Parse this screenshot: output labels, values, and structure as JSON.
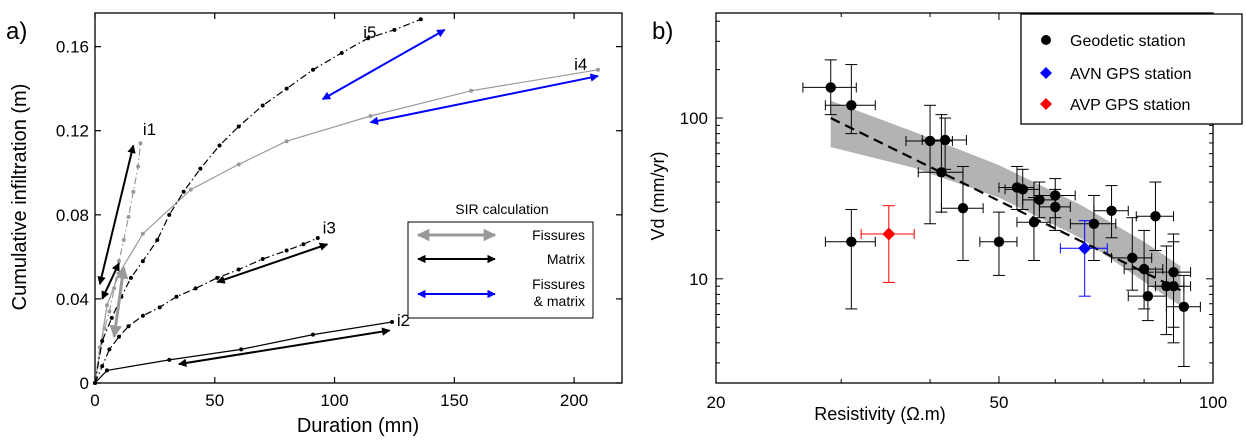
{
  "chart_data": [
    {
      "panel_label": "a)",
      "type": "line",
      "xlabel": "Duration (mn)",
      "ylabel": "Cumulative infiltration (m)",
      "xlim": [
        0,
        220
      ],
      "ylim": [
        0,
        0.176
      ],
      "xticks": [
        0,
        50,
        100,
        150,
        200
      ],
      "yticks": [
        0,
        0.04,
        0.08,
        0.12,
        0.16
      ],
      "xtick_labels": [
        "0",
        "50",
        "100",
        "150",
        "200"
      ],
      "ytick_labels": [
        "0",
        "0.04",
        "0.08",
        "0.12",
        "0.16"
      ],
      "grid": false,
      "series": [
        {
          "name": "i1",
          "color": "#999999",
          "style": "dashdot",
          "x": [
            0,
            2,
            4,
            6,
            8,
            10,
            12,
            14,
            16,
            18,
            19
          ],
          "y": [
            0,
            0.017,
            0.026,
            0.034,
            0.045,
            0.058,
            0.068,
            0.079,
            0.091,
            0.103,
            0.114
          ]
        },
        {
          "name": "i2",
          "color": "#000000",
          "style": "solid",
          "x": [
            0,
            5,
            31,
            61,
            91,
            124
          ],
          "y": [
            0,
            0.006,
            0.011,
            0.016,
            0.023,
            0.029
          ]
        },
        {
          "name": "i3",
          "color": "#000000",
          "style": "dashdot",
          "x": [
            0,
            3,
            6,
            10,
            14,
            20,
            27,
            34,
            42,
            51,
            60,
            70,
            80,
            87,
            93
          ],
          "y": [
            0,
            0.008,
            0.016,
            0.022,
            0.027,
            0.032,
            0.036,
            0.041,
            0.045,
            0.05,
            0.054,
            0.059,
            0.063,
            0.066,
            0.069
          ]
        },
        {
          "name": "i4",
          "color": "#999999",
          "style": "solid",
          "x": [
            0,
            5,
            10,
            20,
            40,
            60,
            80,
            115,
            157,
            210
          ],
          "y": [
            0,
            0.037,
            0.052,
            0.071,
            0.092,
            0.104,
            0.115,
            0.127,
            0.139,
            0.149
          ]
        },
        {
          "name": "i5",
          "color": "#000000",
          "style": "dashdot",
          "x": [
            0,
            3,
            7,
            11,
            15,
            20,
            26,
            31,
            37,
            44,
            52,
            60,
            70,
            80,
            91,
            103,
            114,
            125,
            136
          ],
          "y": [
            0,
            0.02,
            0.031,
            0.041,
            0.05,
            0.058,
            0.068,
            0.08,
            0.091,
            0.102,
            0.113,
            0.122,
            0.132,
            0.14,
            0.149,
            0.157,
            0.164,
            0.168,
            0.173
          ]
        }
      ],
      "series_labels": [
        {
          "text": "i1",
          "x": 20,
          "y": 0.118
        },
        {
          "text": "i2",
          "x": 126,
          "y": 0.027
        },
        {
          "text": "i3",
          "x": 95,
          "y": 0.071
        },
        {
          "text": "i4",
          "x": 200,
          "y": 0.149
        },
        {
          "text": "i5",
          "x": 112,
          "y": 0.164
        }
      ],
      "arrows": [
        {
          "color": "#000000",
          "x1": 2,
          "y1": 0.047,
          "x2": 16,
          "y2": 0.113
        },
        {
          "color": "#999999",
          "x1": 12,
          "y1": 0.055,
          "x2": 8,
          "y2": 0.022
        },
        {
          "color": "#000000",
          "x1": 3,
          "y1": 0.04,
          "x2": 10,
          "y2": 0.057
        },
        {
          "color": "#000000",
          "x1": 51,
          "y1": 0.048,
          "x2": 97,
          "y2": 0.066
        },
        {
          "color": "#000000",
          "x1": 35,
          "y1": 0.009,
          "x2": 123,
          "y2": 0.025
        },
        {
          "color": "#0000ff",
          "x1": 95,
          "y1": 0.135,
          "x2": 146,
          "y2": 0.168
        },
        {
          "color": "#0000ff",
          "x1": 115,
          "y1": 0.124,
          "x2": 210,
          "y2": 0.146
        }
      ],
      "legend": {
        "title": "SIR calculation",
        "placement": "lower-right",
        "entries": [
          {
            "label": "Fissures",
            "color": "#999999"
          },
          {
            "label": "Matrix",
            "color": "#000000"
          },
          {
            "label": "Fissures & matrix",
            "color": "#0000ff"
          }
        ]
      }
    },
    {
      "panel_label": "b)",
      "type": "scatter",
      "xlabel": "Resistivity (Ω.m)",
      "ylabel": "Vd (mm/yr)",
      "xscale": "log",
      "yscale": "log",
      "xlim": [
        20,
        100
      ],
      "ylim": [
        2.25,
        450
      ],
      "xticks": [
        20,
        50,
        100
      ],
      "yticks": [
        10,
        100
      ],
      "xtick_labels": [
        "20",
        "50",
        "100"
      ],
      "ytick_labels": [
        "10",
        "100"
      ],
      "grid": false,
      "legend": {
        "placement": "top-right",
        "entries": [
          {
            "label": "Geodetic station",
            "color": "#000000"
          },
          {
            "label": "AVN GPS station",
            "color": "#0000ff"
          },
          {
            "label": "AVP GPS station",
            "color": "#ff0000"
          }
        ]
      },
      "fit": {
        "style": "dashed",
        "x": [
          29,
          90
        ],
        "y": [
          100,
          8.5
        ]
      },
      "confidence_band": {
        "color": "#b3b3b3",
        "x": [
          29,
          38,
          50,
          65,
          80,
          90
        ],
        "upper": [
          128,
          82,
          51,
          29,
          17,
          12
        ],
        "lower": [
          66,
          49,
          32,
          18,
          9.6,
          6.8
        ]
      },
      "series": [
        {
          "name": "Geodetic station",
          "color": "#000000",
          "marker": "circle",
          "points": [
            {
              "x": 29,
              "y": 155,
              "xerr": [
                26.5,
                31.5
              ],
              "yerr": [
                105,
                230
              ]
            },
            {
              "x": 31,
              "y": 120,
              "xerr": [
                28.5,
                33.5
              ],
              "yerr": [
                80,
                215
              ]
            },
            {
              "x": 31,
              "y": 17,
              "xerr": [
                28.5,
                33.5
              ],
              "yerr": [
                6.5,
                27
              ]
            },
            {
              "x": 40,
              "y": 72,
              "xerr": [
                37,
                43
              ],
              "yerr": [
                22,
                120
              ]
            },
            {
              "x": 41.5,
              "y": 46,
              "xerr": [
                38.5,
                44.5
              ],
              "yerr": [
                26,
                105
              ]
            },
            {
              "x": 42,
              "y": 73,
              "xerr": [
                39,
                45
              ],
              "yerr": [
                48,
                100
              ]
            },
            {
              "x": 44.5,
              "y": 27.5,
              "xerr": [
                41.5,
                47.5
              ],
              "yerr": [
                13,
                50
              ]
            },
            {
              "x": 50,
              "y": 17,
              "xerr": [
                47,
                53
              ],
              "yerr": [
                10.5,
                26
              ]
            },
            {
              "x": 53,
              "y": 37,
              "xerr": [
                50,
                56
              ],
              "yerr": [
                27,
                50
              ]
            },
            {
              "x": 54,
              "y": 36,
              "xerr": [
                51,
                57
              ],
              "yerr": [
                27,
                48
              ]
            },
            {
              "x": 56,
              "y": 22.5,
              "xerr": [
                53,
                59
              ],
              "yerr": [
                13,
                32
              ]
            },
            {
              "x": 57,
              "y": 31,
              "xerr": [
                54,
                60
              ],
              "yerr": [
                24,
                40
              ]
            },
            {
              "x": 60,
              "y": 33,
              "xerr": [
                56,
                64
              ],
              "yerr": [
                24,
                42
              ]
            },
            {
              "x": 60,
              "y": 28,
              "xerr": [
                57,
                63
              ],
              "yerr": [
                20,
                36
              ]
            },
            {
              "x": 68,
              "y": 22,
              "xerr": [
                63,
                73
              ],
              "yerr": [
                13,
                33
              ]
            },
            {
              "x": 72,
              "y": 26.5,
              "xerr": [
                68,
                76
              ],
              "yerr": [
                18,
                38
              ]
            },
            {
              "x": 77,
              "y": 13.5,
              "xerr": [
                72,
                82
              ],
              "yerr": [
                8.5,
                24
              ]
            },
            {
              "x": 80,
              "y": 11.5,
              "xerr": [
                75,
                85
              ],
              "yerr": [
                6.5,
                20
              ]
            },
            {
              "x": 81,
              "y": 7.8,
              "xerr": [
                76,
                86
              ],
              "yerr": [
                5.5,
                11
              ]
            },
            {
              "x": 83,
              "y": 24.5,
              "xerr": [
                78,
                88
              ],
              "yerr": [
                15,
                40
              ]
            },
            {
              "x": 86,
              "y": 9,
              "xerr": [
                81,
                91
              ],
              "yerr": [
                4.5,
                16
              ]
            },
            {
              "x": 88,
              "y": 11,
              "xerr": [
                83,
                93
              ],
              "yerr": [
                4,
                19
              ]
            },
            {
              "x": 88,
              "y": 9,
              "xerr": [
                83,
                93
              ],
              "yerr": [
                5,
                17
              ]
            },
            {
              "x": 91,
              "y": 6.7,
              "xerr": [
                86,
                96
              ],
              "yerr": [
                2.85,
                10.5
              ]
            }
          ]
        },
        {
          "name": "AVN GPS station",
          "color": "#0000ff",
          "marker": "diamond",
          "points": [
            {
              "x": 66,
              "y": 15.5,
              "xerr": [
                61,
                71
              ],
              "yerr": [
                7.8,
                23
              ]
            }
          ]
        },
        {
          "name": "AVP GPS station",
          "color": "#ff0000",
          "marker": "diamond",
          "points": [
            {
              "x": 35,
              "y": 19,
              "xerr": [
                32,
                38
              ],
              "yerr": [
                9.5,
                28.5
              ]
            }
          ]
        }
      ]
    }
  ]
}
